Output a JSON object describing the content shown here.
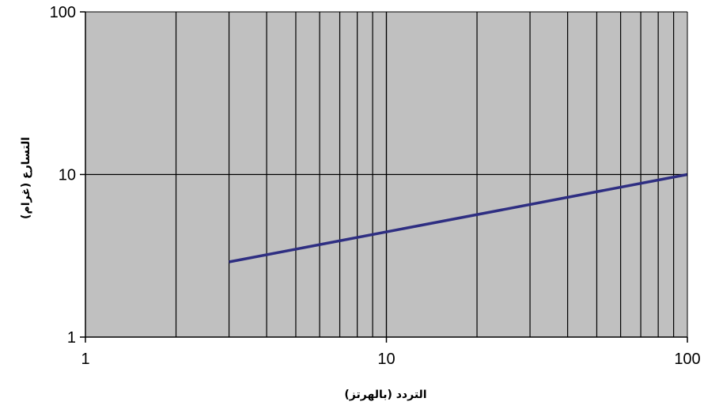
{
  "chart_data": {
    "type": "line",
    "title": "",
    "xlabel": "التردد (بالهرتز)",
    "ylabel": "التسارع (غرام)",
    "xscale": "log",
    "yscale": "log",
    "xlim": [
      1,
      100
    ],
    "ylim": [
      1,
      100
    ],
    "x_ticks": [
      "1",
      "10",
      "100"
    ],
    "y_ticks": [
      "1",
      "10",
      "100"
    ],
    "grid": "vertical minor and major log gridlines, horizontal major gridlines",
    "plot_background": "#c0c0c0",
    "series": [
      {
        "color": "#2e2e82",
        "points": [
          {
            "x": 3,
            "y": 2.9
          },
          {
            "x": 100,
            "y": 10
          }
        ]
      }
    ]
  }
}
